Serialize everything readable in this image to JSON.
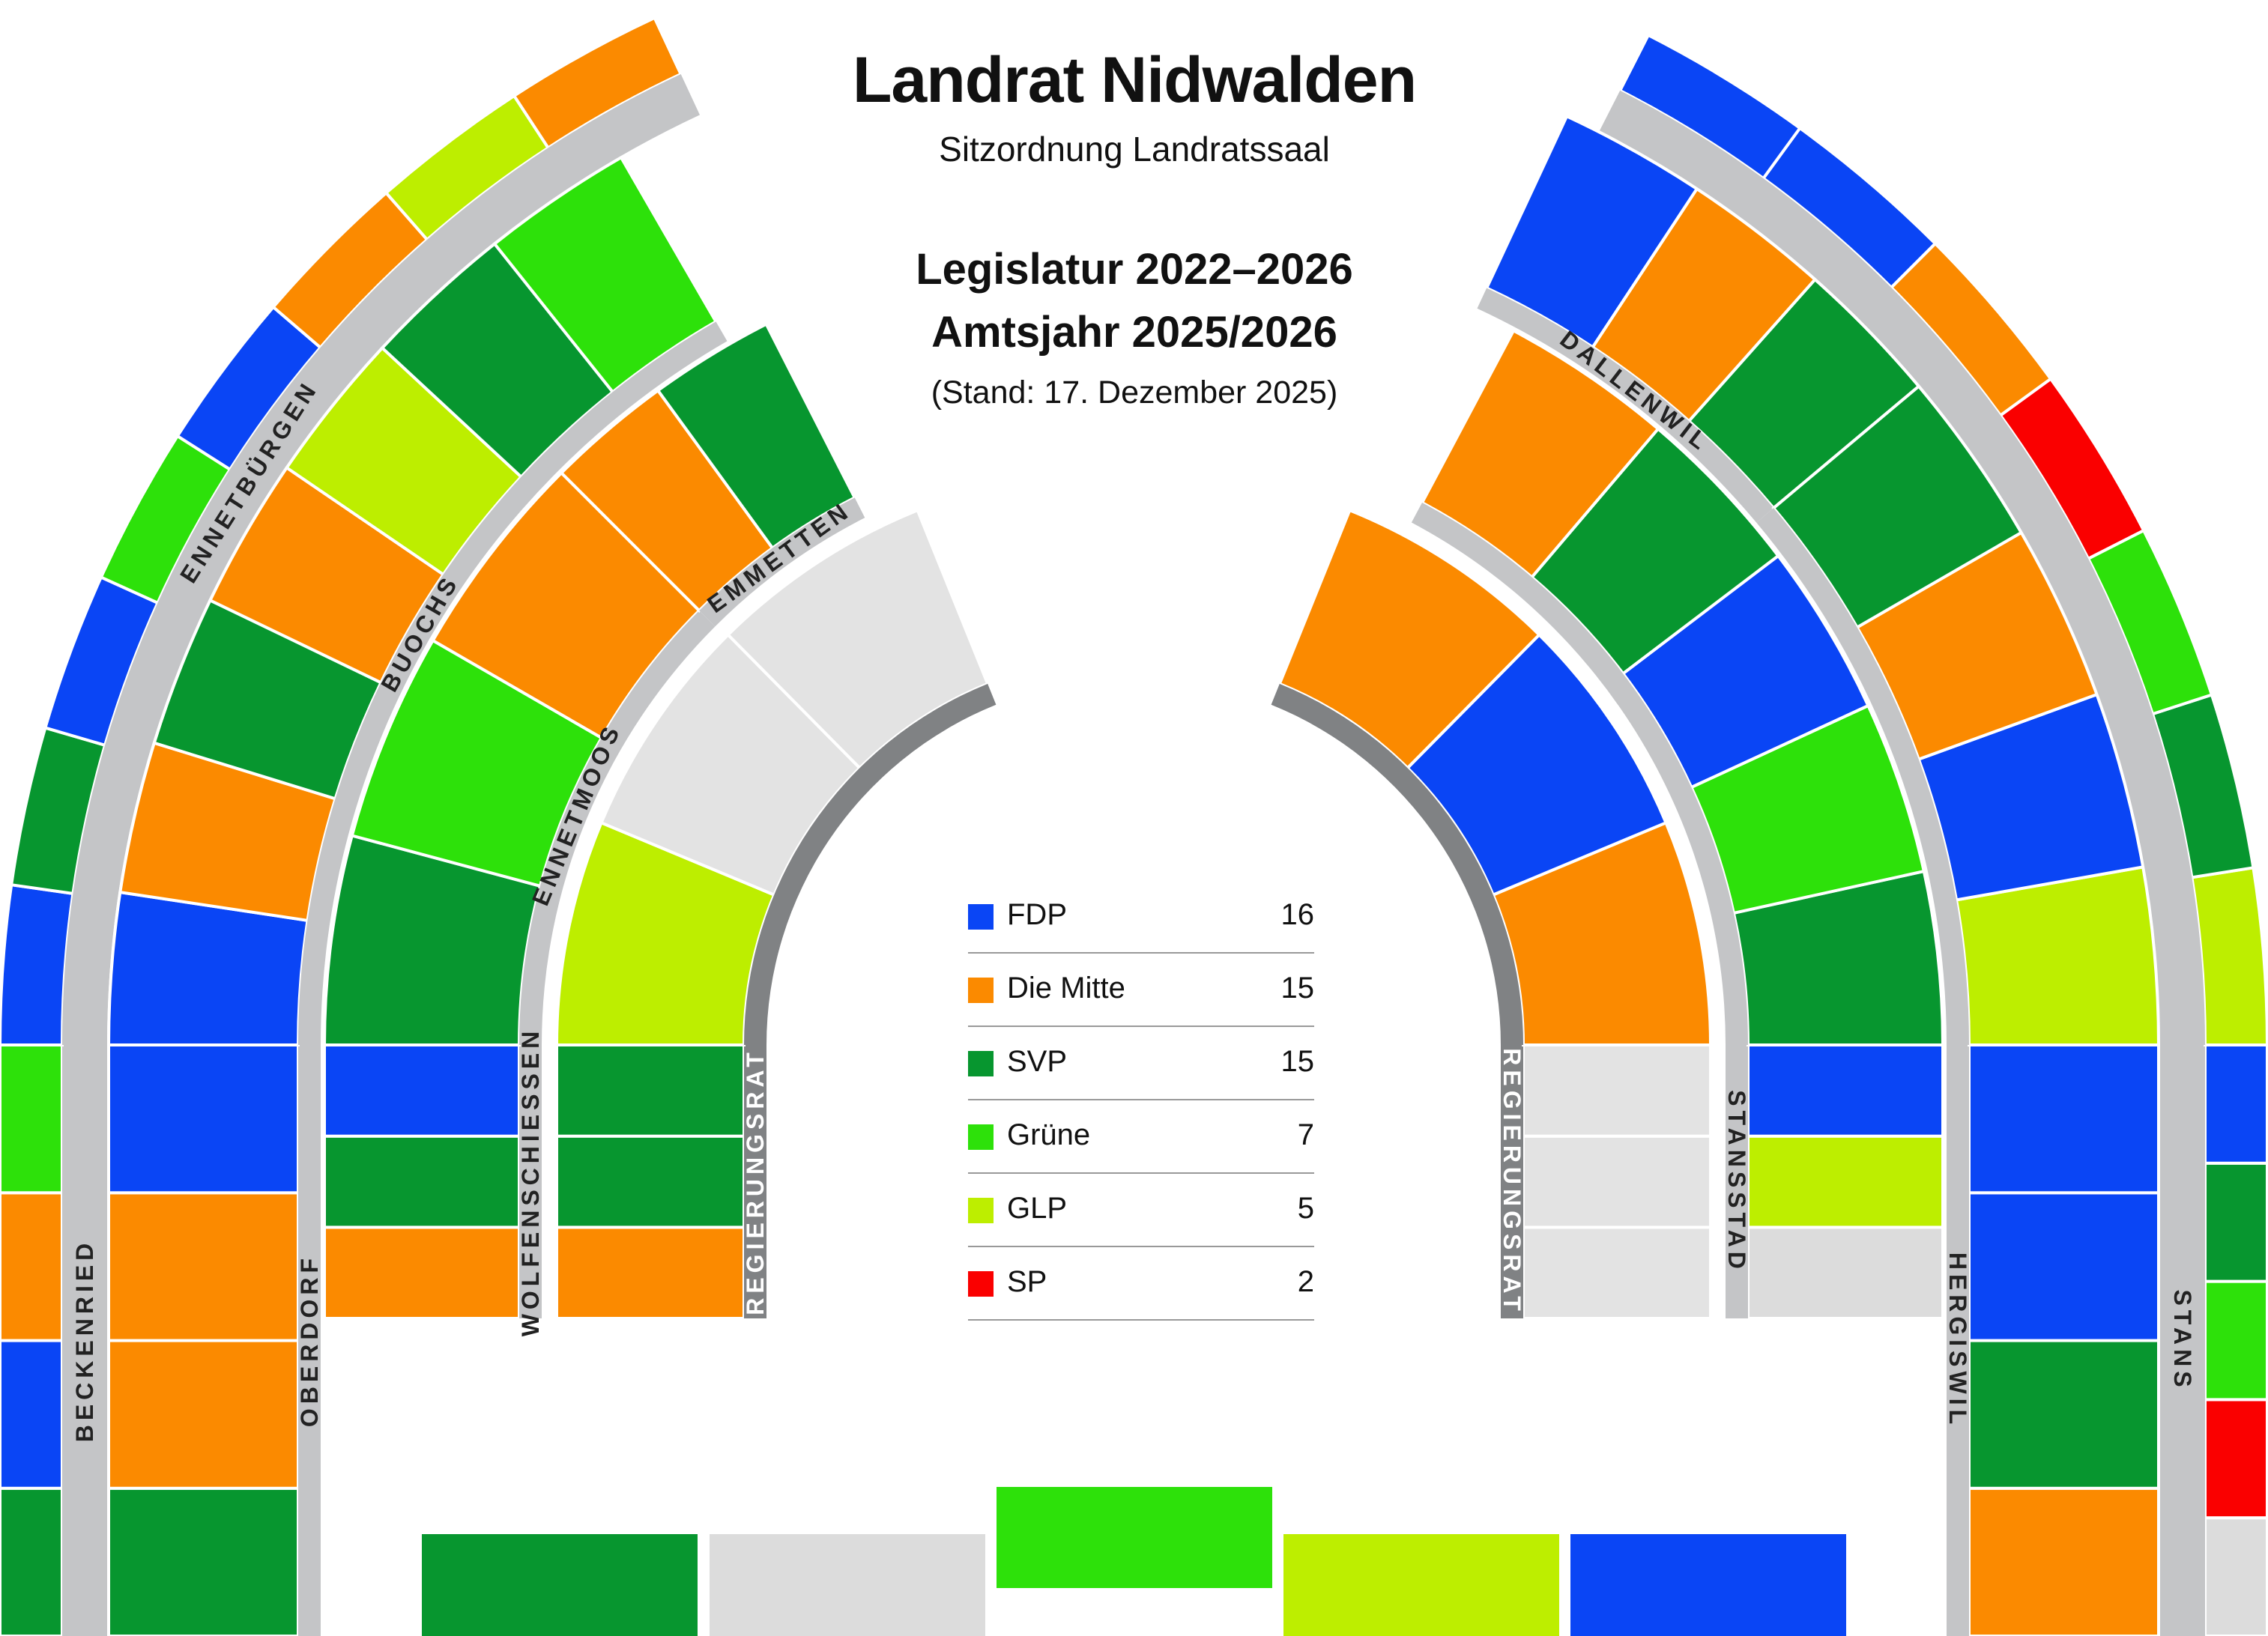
{
  "header": {
    "title": "Landrat Nidwalden",
    "subtitle": "Sitzordnung Landratssaal",
    "legislatur": "Legislatur 2022–2026",
    "amtsjahr": "Amtsjahr 2025/2026",
    "stand": "(Stand: 17. Dezember 2025)"
  },
  "colors": {
    "FDP": "#0a45f5",
    "Die Mitte": "#fb8a00",
    "SVP": "#07962f",
    "Grüne": "#2de10a",
    "GLP": "#bdee00",
    "SP": "#fa0000",
    "Vakant": "#dcdcdc",
    "Regierungsrat": "#e3e3e3"
  },
  "chart_data": {
    "type": "seating-plan",
    "legend": [
      {
        "party": "FDP",
        "seats": 16
      },
      {
        "party": "Die Mitte",
        "seats": 15
      },
      {
        "party": "SVP",
        "seats": 15
      },
      {
        "party": "Grüne",
        "seats": 7
      },
      {
        "party": "GLP",
        "seats": 5
      },
      {
        "party": "SP",
        "seats": 2
      }
    ],
    "blocks": [
      {
        "label": "BECKENRIED",
        "side": "left",
        "row": 1,
        "seats": [
          "SVP",
          "FDP",
          "Die Mitte",
          "Grüne"
        ]
      },
      {
        "label": "ENNETBÜRGEN",
        "side": "left",
        "row": 1,
        "seats": [
          "FDP",
          "SVP",
          "FDP",
          "Grüne",
          "FDP",
          "Die Mitte",
          "GLP",
          "Die Mitte"
        ]
      },
      {
        "label": "OBERDORF",
        "side": "left",
        "row": 2,
        "seats": [
          "SVP",
          "Die Mitte",
          "Die Mitte",
          "FDP"
        ]
      },
      {
        "label": "BUOCHS",
        "side": "left",
        "row": 2,
        "seats": [
          "FDP",
          "Die Mitte",
          "SVP",
          "Die Mitte",
          "GLP",
          "SVP",
          "Grüne"
        ]
      },
      {
        "label": "WOLFENSCHIESSEN",
        "side": "left",
        "row": 3,
        "seats": [
          "Die Mitte",
          "SVP",
          "FDP"
        ]
      },
      {
        "label": "ENNETMOOS",
        "side": "left",
        "row": 3,
        "seats": [
          "SVP",
          "Grüne",
          "Die Mitte"
        ]
      },
      {
        "label": "EMMETTEN",
        "side": "left",
        "row": 3,
        "seats": [
          "Die Mitte",
          "SVP"
        ]
      },
      {
        "label": "REGIERUNGSRAT",
        "side": "left",
        "row": 4,
        "seats": [
          "Die Mitte",
          "SVP",
          "SVP",
          "GLP",
          "Regierungsrat",
          "Regierungsrat"
        ]
      },
      {
        "label": "REGIERUNGSRAT",
        "side": "right",
        "row": 4,
        "seats": [
          "Regierungsrat",
          "Regierungsrat",
          "Regierungsrat",
          "Die Mitte",
          "FDP",
          "Die Mitte"
        ]
      },
      {
        "label": "STANSSTAD",
        "side": "right",
        "row": 3,
        "seats": [
          "Vakant",
          "GLP",
          "FDP",
          "SVP",
          "Grüne",
          "FDP",
          "SVP",
          "Die Mitte"
        ]
      },
      {
        "label": "DALLENWIL",
        "side": "right",
        "row": 2,
        "seats": [
          "SVP",
          "Die Mitte",
          "FDP"
        ]
      },
      {
        "label": "HERGISWIL",
        "side": "right",
        "row": 2,
        "seats": [
          "Die Mitte",
          "SVP",
          "FDP",
          "FDP",
          "GLP",
          "FDP",
          "Die Mitte",
          "SVP"
        ]
      },
      {
        "label": "STANS",
        "side": "right",
        "row": 1,
        "seats": [
          "Vakant",
          "SP",
          "Grüne",
          "SVP",
          "FDP",
          "GLP",
          "SVP",
          "Grüne",
          "SP",
          "Die Mitte",
          "FDP",
          "FDP"
        ]
      }
    ],
    "front_desks": [
      "SVP",
      "Vakant",
      "Grüne",
      "GLP",
      "FDP"
    ]
  }
}
